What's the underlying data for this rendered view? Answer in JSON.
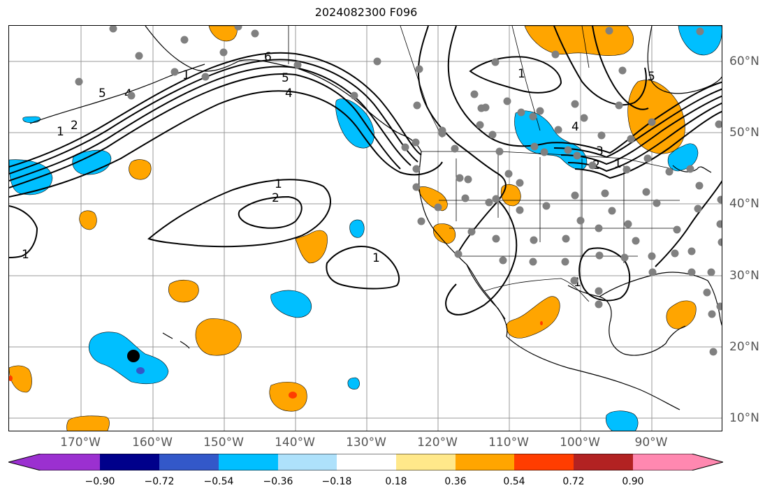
{
  "title": "2024082300 F096",
  "lon_labels": [
    "170°W",
    "160°W",
    "150°W",
    "140°W",
    "130°W",
    "120°W",
    "110°W",
    "100°W",
    "90°W"
  ],
  "lat_labels": [
    "60°N",
    "50°N",
    "40°N",
    "30°N",
    "20°N",
    "10°N"
  ],
  "colorbar": {
    "ticks": [
      "−0.90",
      "−0.72",
      "−0.54",
      "−0.36",
      "−0.18",
      "0.18",
      "0.36",
      "0.54",
      "0.72",
      "0.90"
    ],
    "colors": [
      "#9b30d0",
      "#00008b",
      "#3358c9",
      "#00bfff",
      "#aee1fb",
      "#ffffff",
      "#ffe88a",
      "#ffa500",
      "#ff3d00",
      "#b22222",
      "#ff88b0"
    ]
  },
  "contour_labels": [
    "1",
    "2",
    "3",
    "4",
    "5",
    "6",
    "1",
    "2",
    "3",
    "1",
    "1",
    "1",
    "1",
    "2",
    "3",
    "4",
    "5",
    "1",
    "1",
    "2",
    "3",
    "4",
    "5",
    "6"
  ],
  "colors": {
    "positive": "#ffa500",
    "negative": "#00bfff",
    "station_dot": "#808080",
    "marker": "#000000"
  }
}
